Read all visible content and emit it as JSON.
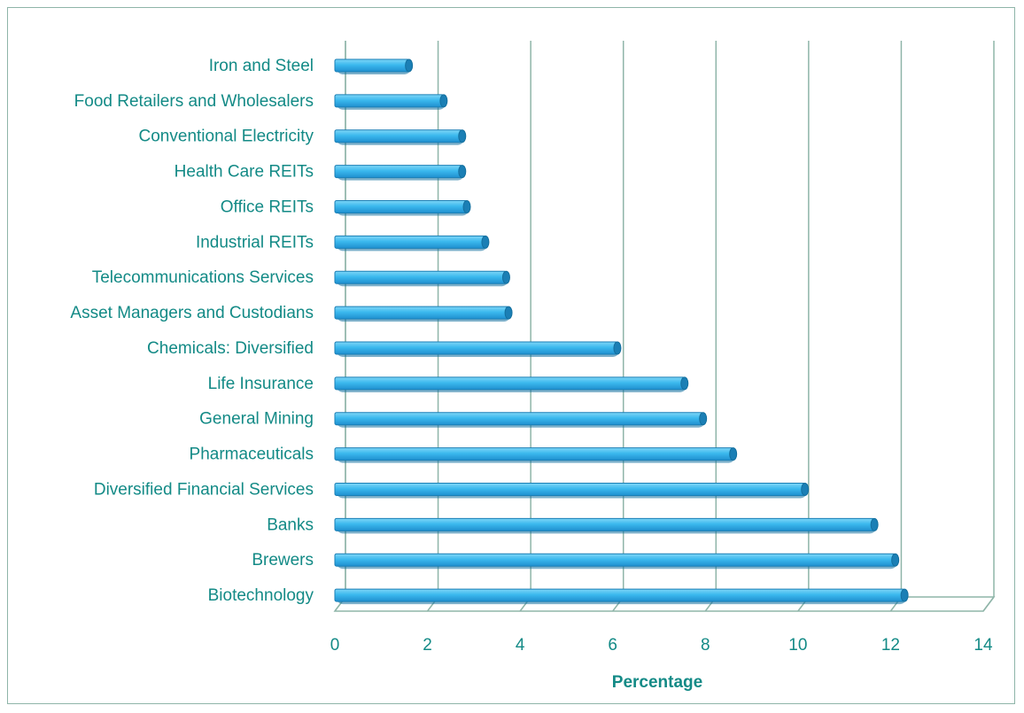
{
  "chart_data": {
    "type": "bar",
    "orientation": "horizontal",
    "categories": [
      "Iron and Steel",
      "Food Retailers and Wholesalers",
      "Conventional Electricity",
      "Health Care REITs",
      "Office REITs",
      "Industrial REITs",
      "Telecommunications Services",
      "Asset Managers and Custodians",
      "Chemicals: Diversified",
      "Life Insurance",
      "General Mining",
      "Pharmaceuticals",
      "Diversified Financial Services",
      "Banks",
      "Brewers",
      "Biotechnology"
    ],
    "values": [
      1.6,
      2.35,
      2.75,
      2.75,
      2.85,
      3.25,
      3.7,
      3.75,
      6.1,
      7.55,
      7.95,
      8.6,
      10.15,
      11.65,
      12.1,
      12.3
    ],
    "title": "",
    "xlabel": "Percentage",
    "ylabel": "",
    "xlim": [
      0,
      14
    ],
    "xticks": [
      "0",
      "2",
      "4",
      "6",
      "8",
      "10",
      "12",
      "14"
    ],
    "grid": true,
    "legend": "none",
    "bar_color": "#3bb9ee",
    "bar_edge_color": "#1b7fb5",
    "grid_color": "#8fb5a9",
    "text_color": "#138a86"
  }
}
